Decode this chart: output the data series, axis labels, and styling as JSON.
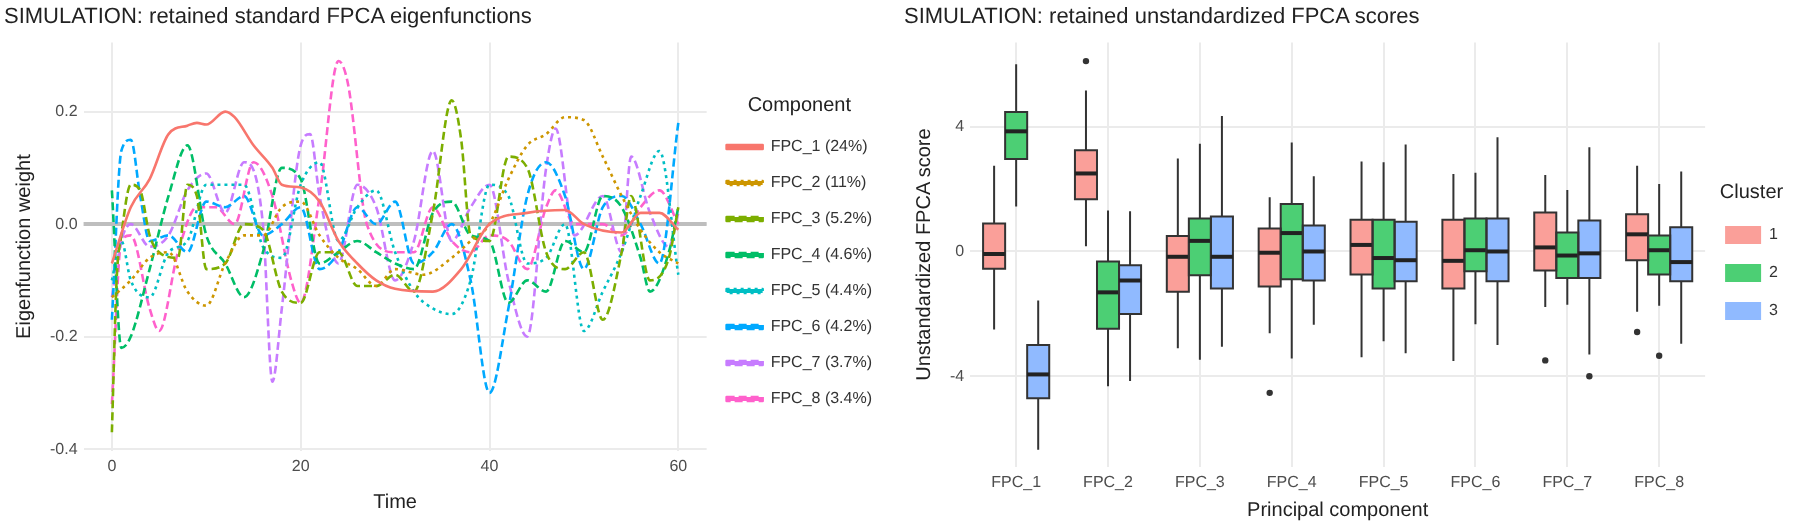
{
  "chart_data": [
    {
      "type": "line",
      "title": "SIMULATION: retained standard FPCA eigenfunctions",
      "xlabel": "Time",
      "ylabel": "Eigenfunction weight",
      "legend_title": "Component",
      "legend": "right",
      "grid": true,
      "xlim": [
        -3,
        63
      ],
      "xticks": [
        0,
        20,
        40,
        60
      ],
      "ylim": [
        -0.403,
        0.323
      ],
      "yticks": [
        {
          "value": -0.4,
          "label": "-0.4"
        },
        {
          "value": -0.2,
          "label": "-0.2"
        },
        {
          "value": 0,
          "label": "0.0"
        },
        {
          "value": 0.2,
          "label": "0.2"
        }
      ],
      "ref_lines": [
        {
          "axis": "y",
          "value": 0,
          "color": "#bebebe"
        }
      ],
      "series": [
        {
          "name": "FPC_1 (24%)",
          "color": "#f8766d",
          "line_style": "solid",
          "x": [
            0,
            2,
            4,
            6,
            8,
            9,
            10,
            12,
            13,
            15,
            17,
            18,
            20,
            22,
            24,
            26,
            28,
            30,
            34,
            37,
            40,
            44,
            48,
            50,
            54,
            56,
            58,
            60
          ],
          "values": [
            -0.07,
            0.03,
            0.08,
            0.16,
            0.175,
            0.18,
            0.177,
            0.2,
            0.19,
            0.14,
            0.1,
            0.07,
            0.065,
            0.04,
            -0.03,
            -0.07,
            -0.1,
            -0.115,
            -0.12,
            -0.08,
            0,
            0.02,
            0.025,
            0,
            -0.015,
            0.02,
            0.02,
            -0.01
          ]
        },
        {
          "name": "FPC_2 (11%)",
          "color": "#cd9600",
          "line_style": "dotted",
          "x": [
            0,
            2,
            4,
            6,
            8,
            10,
            12,
            14,
            16,
            18,
            20,
            22,
            24,
            26,
            28,
            30,
            33,
            36,
            38,
            40,
            42,
            44,
            46,
            48,
            50,
            52,
            54,
            56,
            58,
            60
          ],
          "values": [
            -0.13,
            -0.1,
            -0.06,
            -0.05,
            -0.12,
            -0.145,
            -0.07,
            -0.02,
            -0.02,
            0.03,
            0.04,
            -0.02,
            -0.06,
            -0.08,
            -0.11,
            -0.08,
            -0.09,
            -0.06,
            -0.03,
            0,
            0.08,
            0.14,
            0.16,
            0.19,
            0.185,
            0.12,
            0.05,
            -0.01,
            -0.05,
            -0.07
          ]
        },
        {
          "name": "FPC_3 (5.2%)",
          "color": "#7cae00",
          "line_style": "dashed",
          "x": [
            0,
            0.5,
            1,
            2,
            3,
            4,
            5,
            7,
            8,
            9,
            10,
            12,
            14,
            16,
            18,
            20,
            22,
            24,
            26,
            28,
            30,
            32,
            34,
            36,
            37,
            38,
            40,
            42,
            44,
            46,
            48,
            50,
            52,
            54,
            55,
            57,
            59,
            60
          ],
          "values": [
            -0.37,
            -0.1,
            -0.02,
            0.07,
            0.06,
            -0.02,
            -0.05,
            -0.06,
            0.07,
            0.05,
            -0.08,
            -0.07,
            0,
            -0.01,
            -0.12,
            -0.14,
            -0.05,
            -0.05,
            -0.11,
            -0.11,
            -0.09,
            -0.12,
            0.02,
            0.22,
            0.15,
            -0.02,
            -0.03,
            0.12,
            0.1,
            -0.05,
            -0.08,
            -0.05,
            -0.17,
            -0.05,
            0.05,
            -0.1,
            -0.06,
            0.03
          ]
        },
        {
          "name": "FPC_4 (4.6%)",
          "color": "#00be67",
          "line_style": "dashed",
          "x": [
            0,
            1,
            2,
            4,
            6,
            8,
            10,
            12,
            14,
            16,
            18,
            20,
            22,
            24,
            26,
            28,
            30,
            32,
            34,
            36,
            38,
            40,
            42,
            44,
            46,
            48,
            50,
            52,
            54,
            56,
            57,
            59,
            60
          ],
          "values": [
            0.06,
            -0.22,
            -0.2,
            -0.08,
            0.05,
            0.14,
            -0.02,
            -0.07,
            -0.13,
            -0.05,
            0.1,
            0.08,
            -0.07,
            -0.05,
            -0.03,
            -0.05,
            -0.07,
            -0.08,
            0.02,
            0.04,
            -0.02,
            -0.03,
            -0.14,
            -0.1,
            -0.12,
            -0.03,
            -0.05,
            0.05,
            0.03,
            -0.06,
            -0.12,
            -0.05,
            0.03
          ]
        },
        {
          "name": "FPC_5 (4.4%)",
          "color": "#00bfc4",
          "line_style": "dotted",
          "x": [
            0,
            1,
            2,
            4,
            6,
            8,
            10,
            12,
            14,
            16,
            18,
            20,
            22,
            24,
            26,
            28,
            30,
            32,
            34,
            36,
            38,
            40,
            42,
            44,
            46,
            48,
            50,
            52,
            54,
            56,
            58,
            60
          ],
          "values": [
            -0.1,
            -0.03,
            -0.1,
            -0.13,
            -0.05,
            -0.03,
            0.07,
            0.07,
            0.07,
            -0.04,
            -0.06,
            0.07,
            0.11,
            -0.03,
            0.03,
            0.06,
            -0.05,
            -0.12,
            -0.15,
            -0.16,
            -0.1,
            0.07,
            0.05,
            -0.07,
            -0.06,
            0,
            -0.19,
            -0.12,
            -0.05,
            0.05,
            0.13,
            -0.09
          ]
        },
        {
          "name": "FPC_6 (4.2%)",
          "color": "#00a9ff",
          "line_style": "dashed",
          "x": [
            0,
            1,
            2,
            3,
            4,
            6,
            8,
            10,
            12,
            14,
            16,
            18,
            20,
            22,
            24,
            26,
            28,
            30,
            32,
            34,
            36,
            38,
            40,
            42,
            44,
            46,
            48,
            50,
            52,
            54,
            56,
            58,
            60
          ],
          "values": [
            -0.17,
            0.13,
            0.15,
            0.05,
            -0.03,
            -0.02,
            -0.05,
            0.04,
            0.03,
            0.05,
            -0.02,
            0,
            0.03,
            -0.08,
            -0.05,
            0.03,
            0,
            0.04,
            -0.07,
            -0.05,
            0,
            -0.1,
            -0.3,
            -0.15,
            0.05,
            0.11,
            0.05,
            -0.08,
            0.03,
            0.05,
            0,
            -0.07,
            0.18
          ]
        },
        {
          "name": "FPC_7 (3.7%)",
          "color": "#c77cff",
          "line_style": "dashed",
          "x": [
            0,
            1,
            2,
            4,
            6,
            8,
            10,
            12,
            14,
            16,
            17,
            18,
            20,
            21,
            22,
            24,
            26,
            28,
            30,
            32,
            34,
            36,
            38,
            40,
            42,
            44,
            46,
            47,
            49,
            52,
            54,
            55,
            57,
            59,
            60
          ],
          "values": [
            -0.13,
            -0.03,
            0,
            -0.04,
            -0.02,
            0.06,
            0.09,
            0.02,
            0.11,
            0,
            -0.28,
            -0.15,
            0.14,
            0.16,
            0.05,
            -0.07,
            0.07,
            0.03,
            -0.1,
            -0.03,
            0.13,
            -0.03,
            0.03,
            0.07,
            -0.1,
            -0.2,
            0.1,
            0.17,
            -0.02,
            0.05,
            -0.05,
            0.12,
            0.02,
            -0.04,
            0.02
          ]
        },
        {
          "name": "FPC_8 (3.4%)",
          "color": "#ff61cc",
          "line_style": "dashed",
          "x": [
            0,
            1,
            2,
            4,
            5,
            7,
            9,
            11,
            13,
            15,
            17,
            19,
            20,
            22,
            24,
            25,
            27,
            30,
            32,
            34,
            36,
            38,
            40,
            42,
            44,
            46,
            47,
            49,
            52,
            54,
            56,
            58,
            60
          ],
          "values": [
            -0.32,
            -0.03,
            -0.02,
            -0.15,
            -0.19,
            -0.05,
            0.03,
            0.03,
            0,
            0.11,
            0.05,
            -0.1,
            -0.14,
            0.05,
            0.29,
            0.25,
            0,
            -0.05,
            -0.05,
            0.03,
            -0.03,
            -0.05,
            -0.02,
            -0.03,
            -0.08,
            0.03,
            0.06,
            0,
            0,
            -0.02,
            0.03,
            0.06,
            0
          ]
        }
      ]
    },
    {
      "type": "box",
      "title": "SIMULATION: retained unstandardized FPCA scores",
      "xlabel": "Principal component",
      "ylabel": "Unstandardized FPCA score",
      "legend_title": "Cluster",
      "legend": "right",
      "grid": true,
      "categories": [
        "FPC_1",
        "FPC_2",
        "FPC_3",
        "FPC_4",
        "FPC_5",
        "FPC_6",
        "FPC_7",
        "FPC_8"
      ],
      "ylim": [
        -6.9,
        6.7
      ],
      "yticks": [
        -4,
        0,
        4
      ],
      "series": [
        {
          "name": "1",
          "color": "#fa9f99",
          "boxes": [
            {
              "low": -2.5,
              "q1": -0.55,
              "median": -0.08,
              "q3": 0.9,
              "high": 2.75
            },
            {
              "low": 0.17,
              "q1": 1.67,
              "median": 2.5,
              "q3": 3.24,
              "high": 5.16,
              "outliers": [
                6.1
              ]
            },
            {
              "low": -3.1,
              "q1": -1.29,
              "median": -0.17,
              "q3": 0.5,
              "high": 2.98
            },
            {
              "low": -2.62,
              "q1": -1.12,
              "median": -0.04,
              "q3": 0.74,
              "high": 1.74,
              "outliers": [
                -4.53
              ]
            },
            {
              "low": -3.39,
              "q1": -0.74,
              "median": 0.21,
              "q3": 1.02,
              "high": 2.88
            },
            {
              "low": -3.51,
              "q1": -1.19,
              "median": -0.3,
              "q3": 1.02,
              "high": 2.48
            },
            {
              "low": -1.78,
              "q1": -0.61,
              "median": 0.13,
              "q3": 1.25,
              "high": 2.45,
              "outliers": [
                -3.49
              ]
            },
            {
              "low": -1.93,
              "q1": -0.28,
              "median": 0.55,
              "q3": 1.19,
              "high": 2.75,
              "outliers": [
                -2.58
              ]
            }
          ]
        },
        {
          "name": "2",
          "color": "#4ccf74",
          "boxes": [
            {
              "low": 1.44,
              "q1": 2.96,
              "median": 3.85,
              "q3": 4.47,
              "high": 6.0
            },
            {
              "low": -4.32,
              "q1": -2.48,
              "median": -1.31,
              "q3": -0.32,
              "high": 1.31
            },
            {
              "low": -3.47,
              "q1": -0.76,
              "median": 0.34,
              "q3": 1.06,
              "high": 3.45
            },
            {
              "low": -3.43,
              "q1": -0.89,
              "median": 0.59,
              "q3": 1.52,
              "high": 3.49
            },
            {
              "low": -2.88,
              "q1": -1.19,
              "median": -0.21,
              "q3": 1.02,
              "high": 2.86
            },
            {
              "low": -2.33,
              "q1": -0.63,
              "median": 0.04,
              "q3": 1.06,
              "high": 2.52
            },
            {
              "low": -1.71,
              "q1": -0.85,
              "median": -0.13,
              "q3": 0.61,
              "high": 1.97
            },
            {
              "low": -1.74,
              "q1": -0.74,
              "median": 0.04,
              "q3": 0.51,
              "high": 2.16,
              "outliers": [
                -3.34
              ]
            }
          ]
        },
        {
          "name": "3",
          "color": "#90baff",
          "boxes": [
            {
              "low": -6.35,
              "q1": -4.7,
              "median": -3.94,
              "q3": -3.0,
              "high": -1.57
            },
            {
              "low": -4.15,
              "q1": -2.0,
              "median": -0.93,
              "q3": -0.44,
              "high": 1.29
            },
            {
              "low": -3.05,
              "q1": -1.19,
              "median": -0.17,
              "q3": 1.12,
              "high": 4.34
            },
            {
              "low": -2.35,
              "q1": -0.93,
              "median": 0,
              "q3": 0.83,
              "high": 2.41
            },
            {
              "low": -3.26,
              "q1": -0.95,
              "median": -0.28,
              "q3": 0.95,
              "high": 3.43
            },
            {
              "low": -3.0,
              "q1": -0.95,
              "median": 0,
              "q3": 1.06,
              "high": 3.66
            },
            {
              "low": -3.3,
              "q1": -0.85,
              "median": -0.06,
              "q3": 0.99,
              "high": 3.34,
              "outliers": [
                -4.0
              ]
            },
            {
              "low": -2.96,
              "q1": -0.95,
              "median": -0.34,
              "q3": 0.78,
              "high": 2.56
            }
          ]
        }
      ]
    }
  ]
}
